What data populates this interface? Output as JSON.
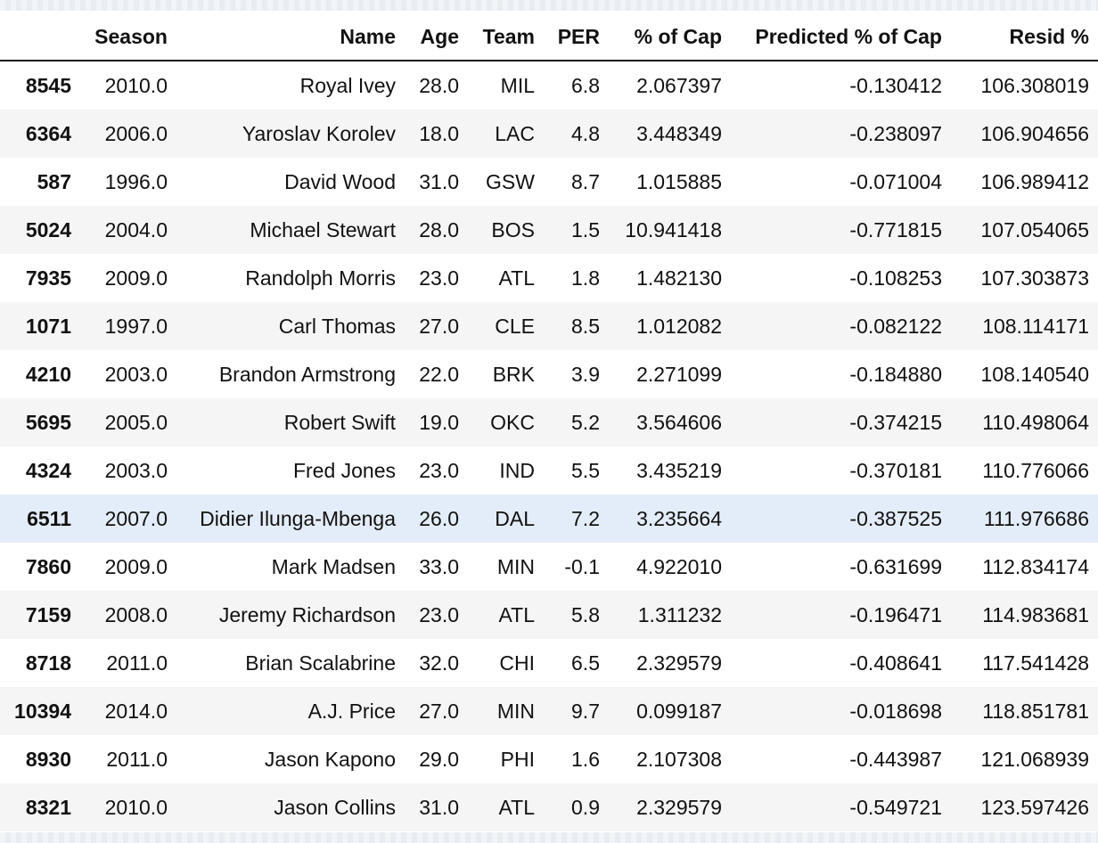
{
  "table": {
    "headers": {
      "index": "",
      "season": "Season",
      "name": "Name",
      "age": "Age",
      "team": "Team",
      "per": "PER",
      "cap": "% of Cap",
      "predicted": "Predicted % of Cap",
      "resid": "Resid %"
    },
    "rows": [
      {
        "index": "8545",
        "season": "2010.0",
        "name": "Royal Ivey",
        "age": "28.0",
        "team": "MIL",
        "per": "6.8",
        "cap": "2.067397",
        "predicted": "-0.130412",
        "resid": "106.308019"
      },
      {
        "index": "6364",
        "season": "2006.0",
        "name": "Yaroslav Korolev",
        "age": "18.0",
        "team": "LAC",
        "per": "4.8",
        "cap": "3.448349",
        "predicted": "-0.238097",
        "resid": "106.904656"
      },
      {
        "index": "587",
        "season": "1996.0",
        "name": "David Wood",
        "age": "31.0",
        "team": "GSW",
        "per": "8.7",
        "cap": "1.015885",
        "predicted": "-0.071004",
        "resid": "106.989412"
      },
      {
        "index": "5024",
        "season": "2004.0",
        "name": "Michael Stewart",
        "age": "28.0",
        "team": "BOS",
        "per": "1.5",
        "cap": "10.941418",
        "predicted": "-0.771815",
        "resid": "107.054065"
      },
      {
        "index": "7935",
        "season": "2009.0",
        "name": "Randolph Morris",
        "age": "23.0",
        "team": "ATL",
        "per": "1.8",
        "cap": "1.482130",
        "predicted": "-0.108253",
        "resid": "107.303873"
      },
      {
        "index": "1071",
        "season": "1997.0",
        "name": "Carl Thomas",
        "age": "27.0",
        "team": "CLE",
        "per": "8.5",
        "cap": "1.012082",
        "predicted": "-0.082122",
        "resid": "108.114171"
      },
      {
        "index": "4210",
        "season": "2003.0",
        "name": "Brandon Armstrong",
        "age": "22.0",
        "team": "BRK",
        "per": "3.9",
        "cap": "2.271099",
        "predicted": "-0.184880",
        "resid": "108.140540"
      },
      {
        "index": "5695",
        "season": "2005.0",
        "name": "Robert Swift",
        "age": "19.0",
        "team": "OKC",
        "per": "5.2",
        "cap": "3.564606",
        "predicted": "-0.374215",
        "resid": "110.498064"
      },
      {
        "index": "4324",
        "season": "2003.0",
        "name": "Fred Jones",
        "age": "23.0",
        "team": "IND",
        "per": "5.5",
        "cap": "3.435219",
        "predicted": "-0.370181",
        "resid": "110.776066"
      },
      {
        "index": "6511",
        "season": "2007.0",
        "name": "Didier Ilunga-Mbenga",
        "age": "26.0",
        "team": "DAL",
        "per": "7.2",
        "cap": "3.235664",
        "predicted": "-0.387525",
        "resid": "111.976686"
      },
      {
        "index": "7860",
        "season": "2009.0",
        "name": "Mark Madsen",
        "age": "33.0",
        "team": "MIN",
        "per": "-0.1",
        "cap": "4.922010",
        "predicted": "-0.631699",
        "resid": "112.834174"
      },
      {
        "index": "7159",
        "season": "2008.0",
        "name": "Jeremy Richardson",
        "age": "23.0",
        "team": "ATL",
        "per": "5.8",
        "cap": "1.311232",
        "predicted": "-0.196471",
        "resid": "114.983681"
      },
      {
        "index": "8718",
        "season": "2011.0",
        "name": "Brian Scalabrine",
        "age": "32.0",
        "team": "CHI",
        "per": "6.5",
        "cap": "2.329579",
        "predicted": "-0.408641",
        "resid": "117.541428"
      },
      {
        "index": "10394",
        "season": "2014.0",
        "name": "A.J. Price",
        "age": "27.0",
        "team": "MIN",
        "per": "9.7",
        "cap": "0.099187",
        "predicted": "-0.018698",
        "resid": "118.851781"
      },
      {
        "index": "8930",
        "season": "2011.0",
        "name": "Jason Kapono",
        "age": "29.0",
        "team": "PHI",
        "per": "1.6",
        "cap": "2.107308",
        "predicted": "-0.443987",
        "resid": "121.068939"
      },
      {
        "index": "8321",
        "season": "2010.0",
        "name": "Jason Collins",
        "age": "31.0",
        "team": "ATL",
        "per": "0.9",
        "cap": "2.329579",
        "predicted": "-0.549721",
        "resid": "123.597426"
      }
    ],
    "hovered_row": 9
  }
}
